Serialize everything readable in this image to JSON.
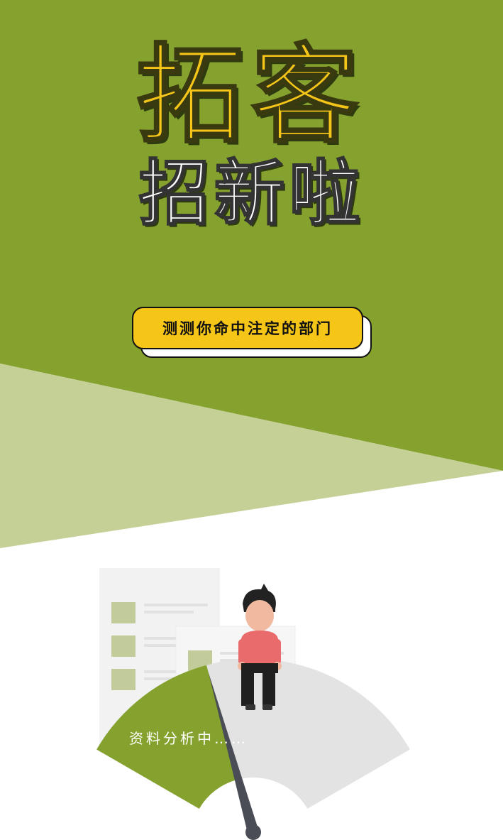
{
  "header": {
    "title_line1": "拓客",
    "title_line2": "招新啦"
  },
  "cta": {
    "label": "测测你命中注定的部门"
  },
  "progress": {
    "label": "资料分析中……",
    "fraction_complete": 0.5
  },
  "colors": {
    "primary_green": "#86a22e",
    "light_green": "#c5d097",
    "accent_yellow": "#f5c518",
    "gauge_gray": "#e3e3e3",
    "needle": "#4a4d55",
    "shirt": "#ea6b6b",
    "skin": "#f2b9a1",
    "hair": "#222222",
    "doc_square": "#c2cc9a"
  },
  "icons": {
    "person": "person-sitting-icon",
    "document": "document-list-icon",
    "gauge": "gauge-icon",
    "needle": "gauge-needle-icon"
  }
}
